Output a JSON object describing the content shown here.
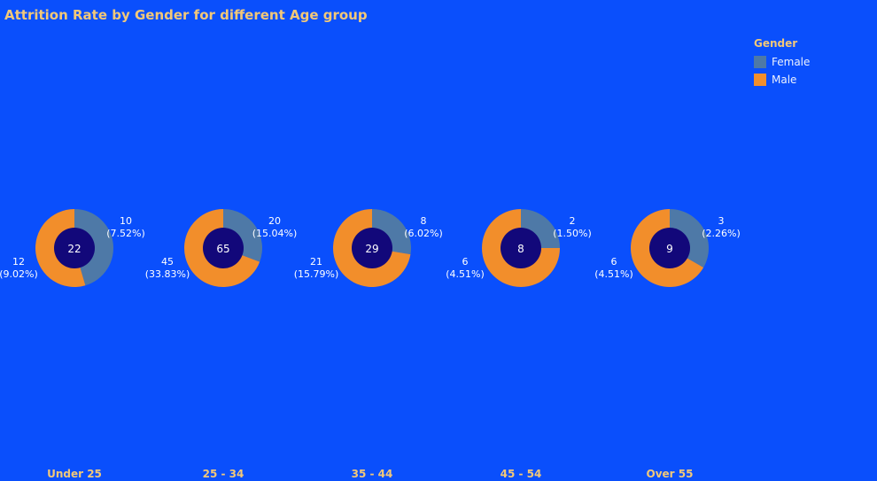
{
  "chart_data": {
    "type": "pie",
    "title": "Attrition Rate by Gender for different Age group",
    "legend": {
      "title": "Gender",
      "position": "top-right",
      "items": [
        {
          "name": "Female",
          "color": "#4e79a7"
        },
        {
          "name": "Male",
          "color": "#f28e2b"
        }
      ]
    },
    "categories": [
      "Under 25",
      "25 - 34",
      "35 - 44",
      "45 - 54",
      "Over 55"
    ],
    "series": [
      {
        "name": "Female",
        "color": "#4e79a7",
        "values": [
          10,
          20,
          8,
          2,
          3
        ],
        "pct_labels": [
          "(7.52%)",
          "(15.04%)",
          "(6.02%)",
          "(1.50%)",
          "(2.26%)"
        ]
      },
      {
        "name": "Male",
        "color": "#f28e2b",
        "values": [
          12,
          45,
          21,
          6,
          6
        ],
        "pct_labels": [
          "(9.02%)",
          "(33.83%)",
          "(15.79%)",
          "(4.51%)",
          "(4.51%)"
        ]
      }
    ],
    "totals": [
      22,
      65,
      29,
      8,
      9
    ],
    "center_color": "#12087a"
  }
}
